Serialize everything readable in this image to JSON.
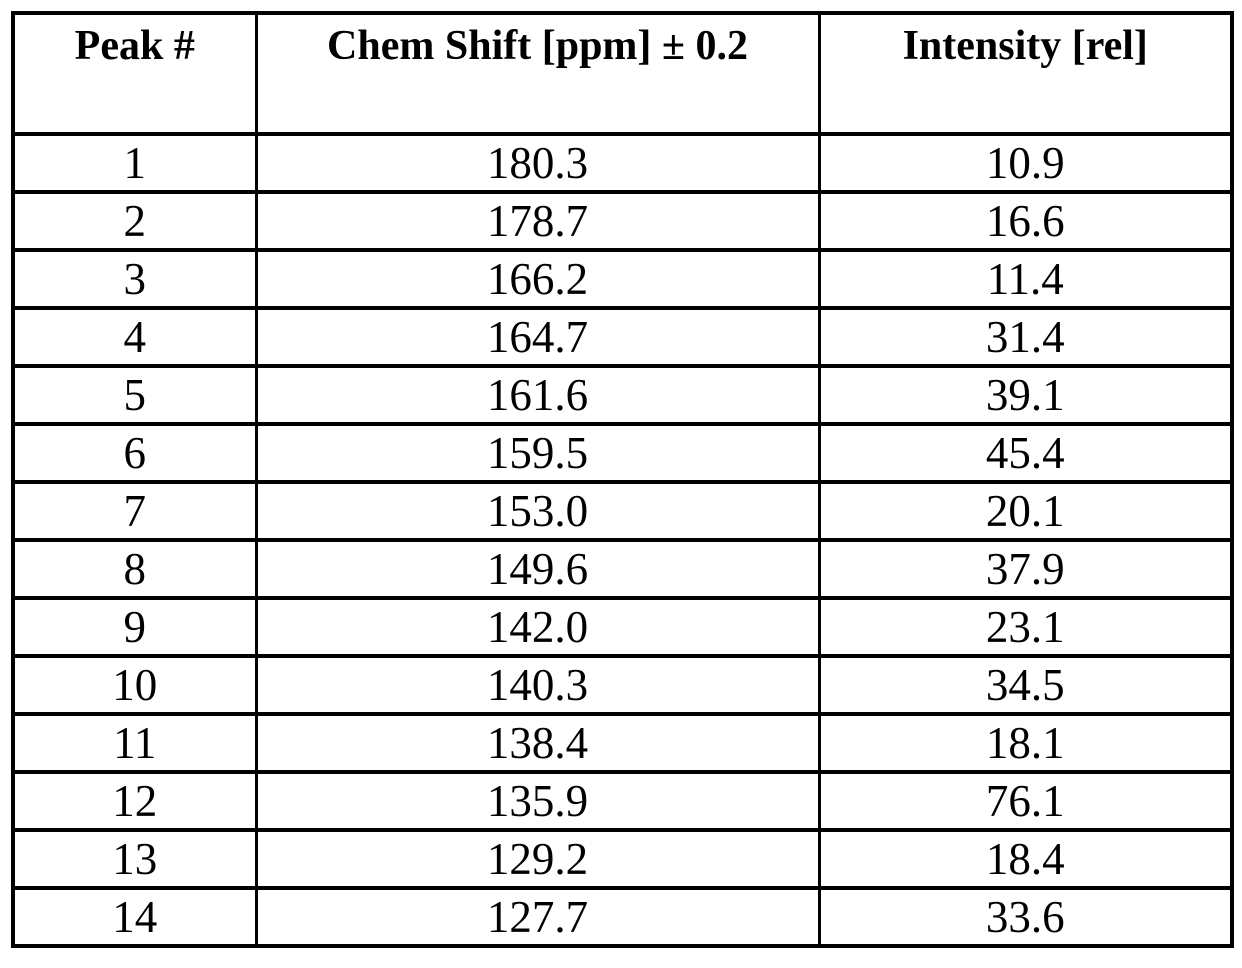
{
  "colors": {
    "background": "#ffffff",
    "border": "#000000",
    "text": "#000000"
  },
  "table": {
    "columns": {
      "peak": "Peak #",
      "chem_shift": "Chem Shift [ppm] ± 0.2",
      "intensity": "Intensity [rel]"
    },
    "rows": [
      [
        "1",
        "180.3",
        "10.9"
      ],
      [
        "2",
        "178.7",
        "16.6"
      ],
      [
        "3",
        "166.2",
        "11.4"
      ],
      [
        "4",
        "164.7",
        "31.4"
      ],
      [
        "5",
        "161.6",
        "39.1"
      ],
      [
        "6",
        "159.5",
        "45.4"
      ],
      [
        "7",
        "153.0",
        "20.1"
      ],
      [
        "8",
        "149.6",
        "37.9"
      ],
      [
        "9",
        "142.0",
        "23.1"
      ],
      [
        "10",
        "140.3",
        "34.5"
      ],
      [
        "11",
        "138.4",
        "18.1"
      ],
      [
        "12",
        "135.9",
        "76.1"
      ],
      [
        "13",
        "129.2",
        "18.4"
      ],
      [
        "14",
        "127.7",
        "33.6"
      ]
    ]
  }
}
